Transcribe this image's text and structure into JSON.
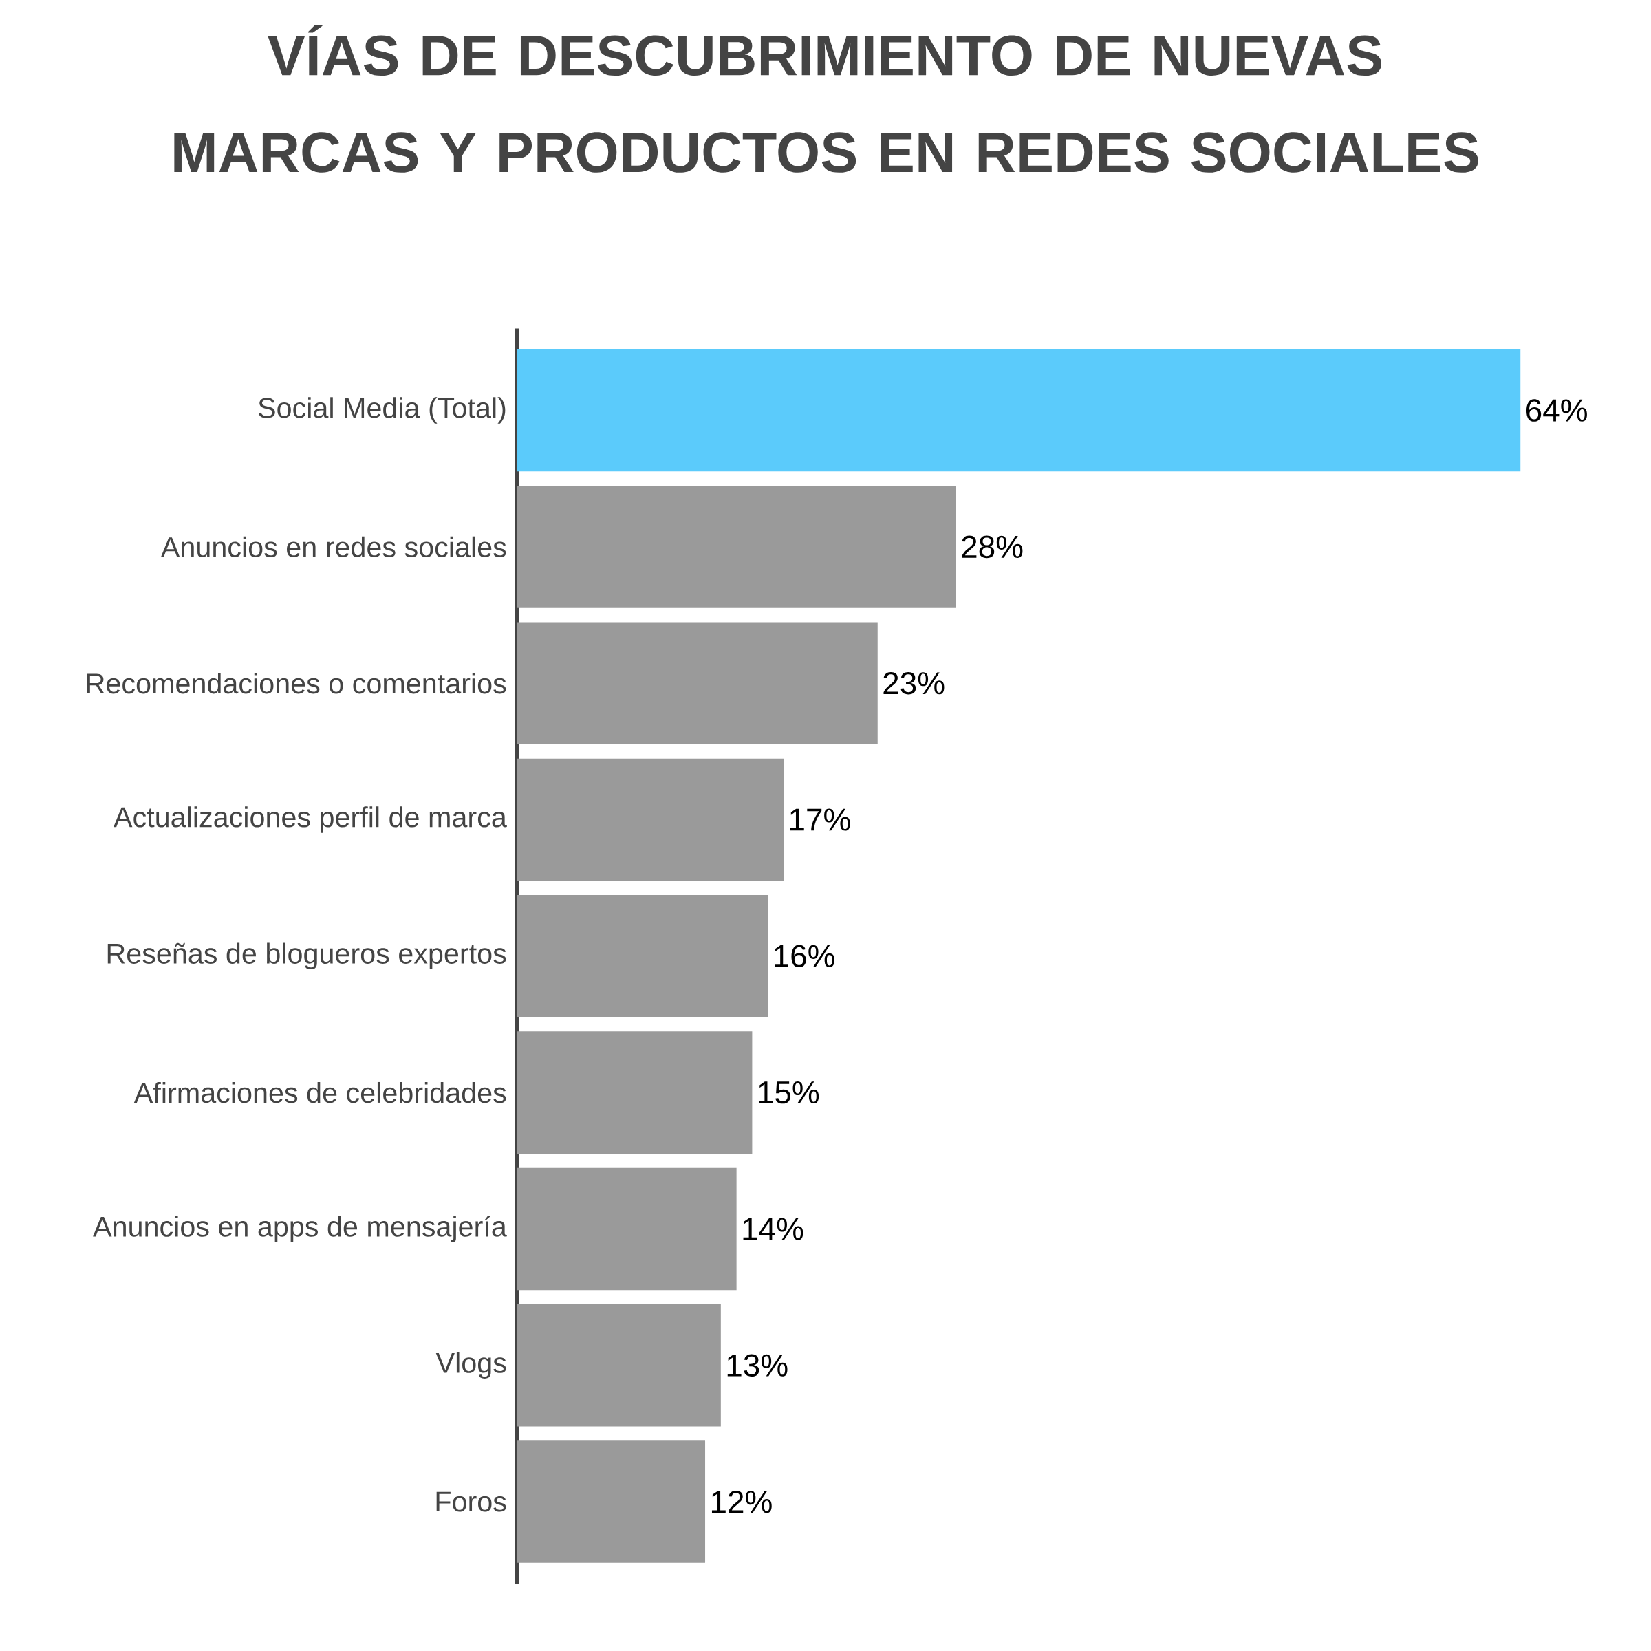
{
  "chart_data": {
    "type": "bar",
    "orientation": "horizontal",
    "title": "VÍAS DE DESCUBRIMIENTO DE NUEVAS MARCAS Y PRODUCTOS EN REDES SOCIALES",
    "categories": [
      "Social Media (Total)",
      "Anuncios en redes sociales",
      "Recomendaciones o comentarios",
      "Actualizaciones perfil de marca",
      "Reseñas de blogueros expertos",
      "Afirmaciones de celebridades",
      "Anuncios en apps de mensajería",
      "Vlogs",
      "Foros"
    ],
    "values": [
      64,
      28,
      23,
      17,
      16,
      15,
      14,
      13,
      12
    ],
    "colors": [
      "#5bcbfb",
      "#9a9a9a",
      "#9a9a9a",
      "#9a9a9a",
      "#9a9a9a",
      "#9a9a9a",
      "#9a9a9a",
      "#9a9a9a",
      "#9a9a9a"
    ],
    "value_labels": [
      "64%",
      "28%",
      "23%",
      "17%",
      "16%",
      "15%",
      "14%",
      "13%",
      "12%"
    ]
  }
}
